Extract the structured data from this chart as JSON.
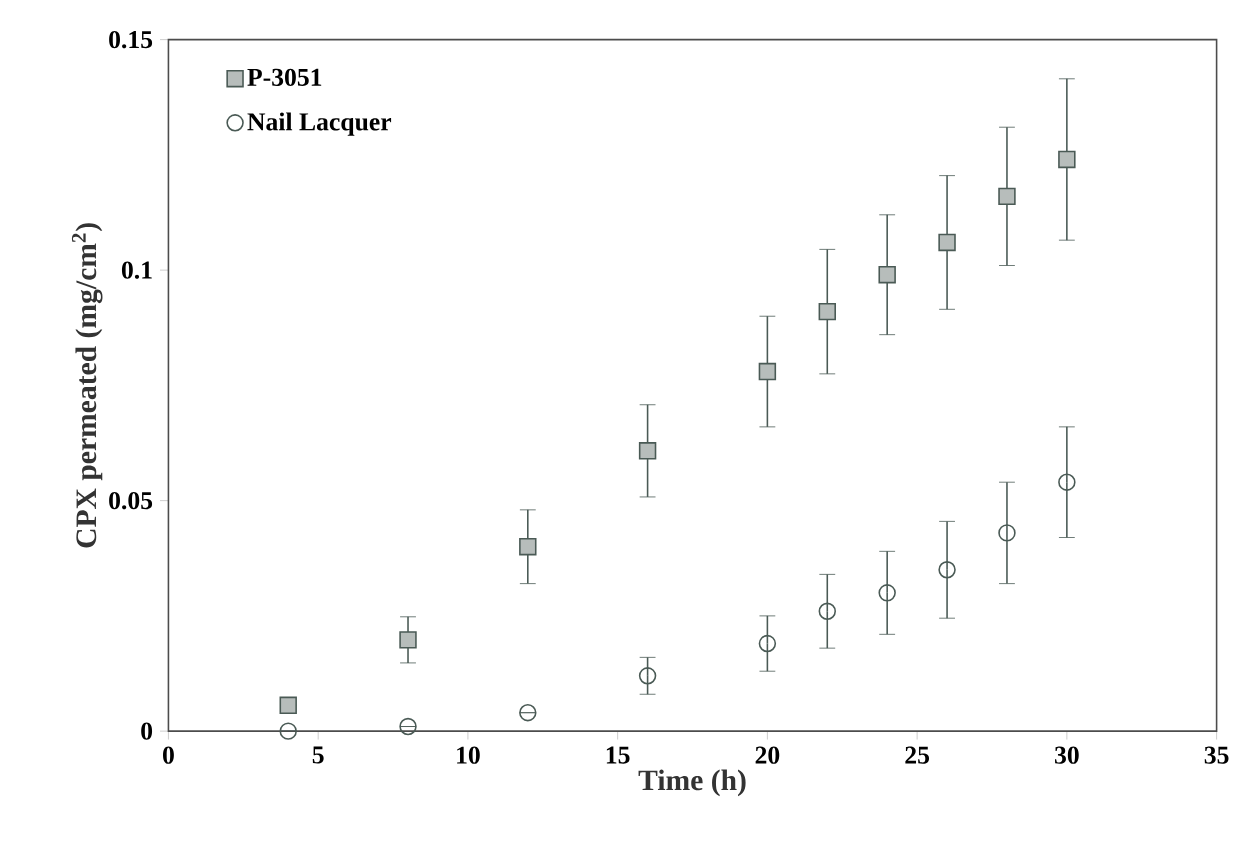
{
  "chart_data": {
    "type": "scatter",
    "xlabel": "Time (h)",
    "ylabel": "CPX permeated (mg/cm$^{2}$)",
    "xlim": [
      0,
      35
    ],
    "xticks": [
      0,
      5,
      10,
      15,
      20,
      25,
      30,
      35
    ],
    "ylim": [
      0,
      0.15
    ],
    "yticks": [
      0,
      0.05,
      0.1,
      0.15
    ],
    "legend": "top left",
    "grid": false,
    "series": [
      {
        "name": "P-3051",
        "color": "#4a5a55",
        "marker": "square",
        "x": [
          4,
          8,
          12,
          16,
          20,
          22,
          24,
          26,
          28,
          30
        ],
        "values": [
          0.0056,
          0.0198,
          0.04,
          0.0608,
          0.078,
          0.091,
          0.099,
          0.106,
          0.116,
          0.124
        ],
        "errors": [
          null,
          0.005,
          0.008,
          0.01,
          0.012,
          0.0135,
          0.013,
          0.0145,
          0.015,
          0.0175
        ]
      },
      {
        "name": "Nail Lacquer",
        "color": "#4a5a55",
        "marker": "circle",
        "x": [
          4,
          8,
          12,
          16,
          20,
          22,
          24,
          26,
          28,
          30
        ],
        "values": [
          0,
          0.001,
          0.004,
          0.012,
          0.019,
          0.026,
          0.03,
          0.035,
          0.043,
          0.054
        ],
        "errors": [
          null,
          null,
          null,
          0.004,
          0.006,
          0.008,
          0.009,
          0.0105,
          0.011,
          0.012
        ]
      }
    ]
  }
}
